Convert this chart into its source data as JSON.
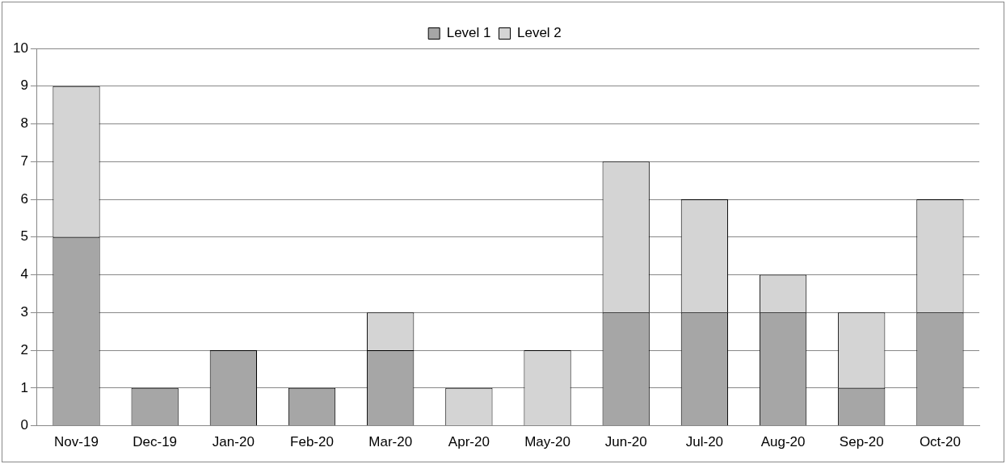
{
  "chart_data": {
    "type": "bar",
    "stacked": true,
    "categories": [
      "Nov-19",
      "Dec-19",
      "Jan-20",
      "Feb-20",
      "Mar-20",
      "Apr-20",
      "May-20",
      "Jun-20",
      "Jul-20",
      "Aug-20",
      "Sep-20",
      "Oct-20"
    ],
    "series": [
      {
        "name": "Level 1",
        "color": "#a6a6a6",
        "values": [
          5,
          1,
          2,
          1,
          2,
          0,
          0,
          3,
          3,
          3,
          1,
          3
        ]
      },
      {
        "name": "Level 2",
        "color": "#d4d4d4",
        "values": [
          4,
          0,
          0,
          0,
          1,
          1,
          2,
          4,
          3,
          1,
          2,
          3
        ]
      }
    ],
    "ylim": [
      0,
      10
    ],
    "yticks": [
      0,
      1,
      2,
      3,
      4,
      5,
      6,
      7,
      8,
      9,
      10
    ],
    "grid": "y",
    "legend": "top"
  }
}
